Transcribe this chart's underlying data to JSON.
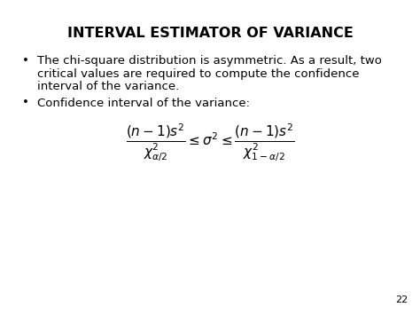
{
  "title": "INTERVAL ESTIMATOR OF VARIANCE",
  "bullet1_line1": "The chi-square distribution is asymmetric. As a result, two",
  "bullet1_line2": "critical values are required to compute the confidence",
  "bullet1_line3": "interval of the variance.",
  "bullet2": "Confidence interval of the variance:",
  "page_number": "22",
  "bg_color": "#ffffff",
  "text_color": "#000000",
  "title_fontsize": 11.5,
  "body_fontsize": 9.5,
  "formula_fontsize": 11
}
